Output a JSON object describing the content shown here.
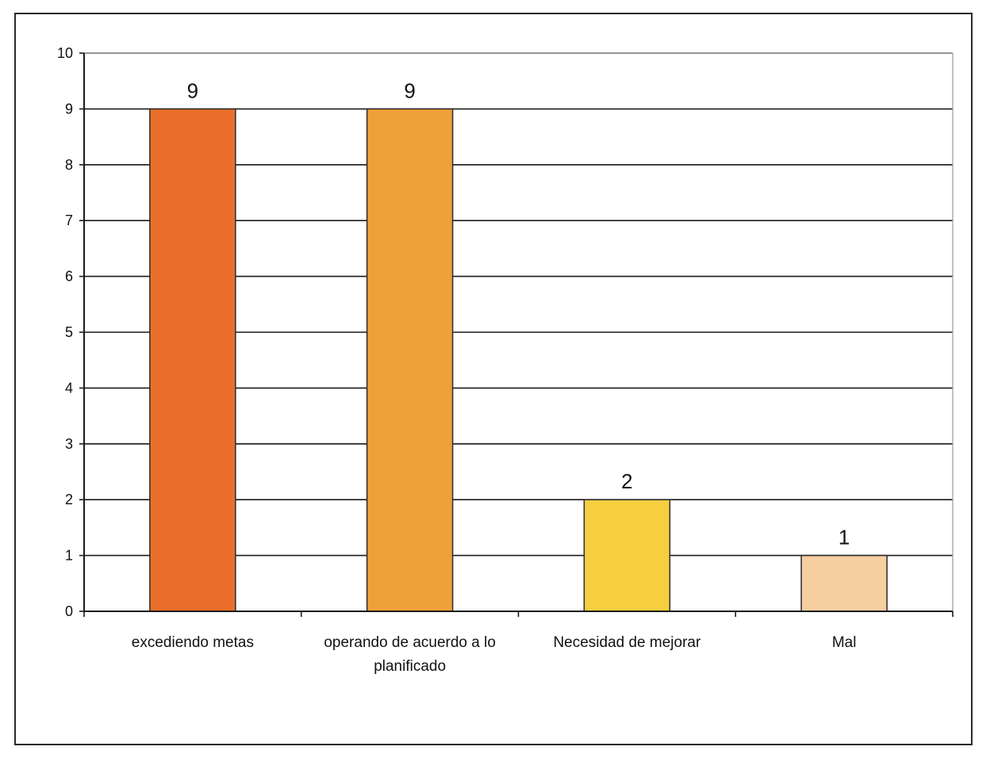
{
  "chart_data": {
    "type": "bar",
    "title": "",
    "xlabel": "",
    "ylabel": "",
    "categories": [
      [
        "excediendo metas"
      ],
      [
        "operando de acuerdo a lo",
        "planificado"
      ],
      [
        "Necesidad de mejorar"
      ],
      [
        "Mal"
      ]
    ],
    "values": [
      9,
      9,
      2,
      1
    ],
    "data_labels": [
      "9",
      "9",
      "2",
      "1"
    ],
    "bar_colors": [
      "#EB6F2A",
      "#F0A038",
      "#F5CF40",
      "#F6CFA0"
    ],
    "ylim": [
      0,
      10
    ],
    "yticks": [
      "0",
      "1",
      "2",
      "3",
      "4",
      "5",
      "6",
      "7",
      "8",
      "9",
      "10"
    ],
    "grid": true,
    "legend": "none"
  }
}
